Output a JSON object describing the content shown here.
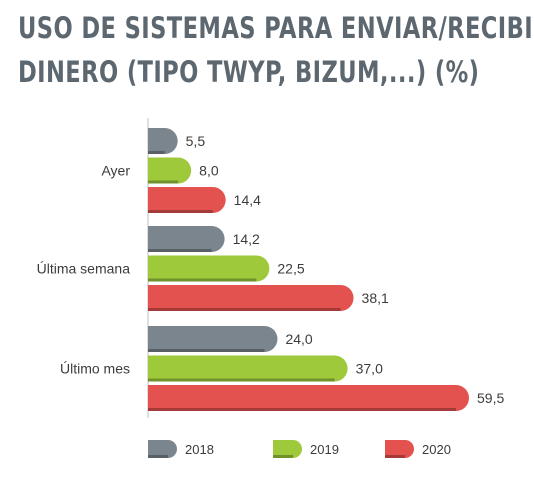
{
  "title": {
    "line1": "USO DE SISTEMAS PARA ENVIAR/RECIBIR",
    "line2": "DINERO (TIPO TWYP, BIZUM,...) (%)"
  },
  "chart_data": {
    "type": "bar",
    "orientation": "horizontal",
    "title": "USO DE SISTEMAS PARA ENVIAR/RECIBIR DINERO (TIPO TWYP, BIZUM,...) (%)",
    "categories": [
      "Ayer",
      "Última semana",
      "Último mes"
    ],
    "series": [
      {
        "name": "2018",
        "values": [
          5.5,
          14.2,
          24.0
        ],
        "labels": [
          "5,5",
          "14,2",
          "24,0"
        ],
        "color": "#7a858d"
      },
      {
        "name": "2019",
        "values": [
          8.0,
          22.5,
          37.0
        ],
        "labels": [
          "8,0",
          "22,5",
          "37,0"
        ],
        "color": "#9dc93b"
      },
      {
        "name": "2020",
        "values": [
          14.4,
          38.1,
          59.5
        ],
        "labels": [
          "14,4",
          "38,1",
          "59,5"
        ],
        "color": "#e4524f"
      }
    ],
    "xlim": [
      0,
      60
    ],
    "grid": false,
    "legend": "bottom"
  }
}
